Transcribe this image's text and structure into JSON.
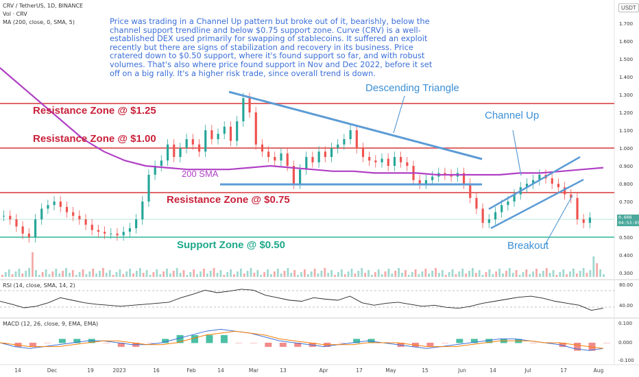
{
  "header": {
    "symbol_line": "CRV / TetherUS, 1D, BINANCE",
    "vol_line": "Vol · CRV",
    "ma_line": "MA (200, close, 0, SMA, 5)",
    "currency": "USDT"
  },
  "note": "Price was trading in a Channel Up pattern but broke out of it, bearishly, below the channel support trendline and below $0.75 support zone. Curve (CRV) is a well-established DEX used primarily for swapping of stablecoins. It suffered an exploit recently but there are signs of stabilization and recovery in its business. Price cratered down to $0.50 support, where it's found support so far, and with robust volumes. That's also where price found support in Nov and Dec 2022, before it set off on a big rally. It's a higher risk trade, since overall trend is down.",
  "annotations": {
    "res125": "Resistance Zone @ $1.25",
    "res100": "Resistance Zone @ $1.00",
    "res075": "Resistance Zone @ $0.75",
    "sup050": "Support Zone @ $0.50",
    "sma": "200 SMA",
    "desc_tri": "Descending Triangle",
    "channel_up": "Channel Up",
    "breakout": "Breakout"
  },
  "rsi_label": "RSI (14, close, SMA, 14, 2)",
  "macd_label": "MACD (12, 26, close, 9, EMA, EMA)",
  "price_tag": {
    "price": "0.608",
    "time": "04:53:05"
  },
  "colors": {
    "up": "#26a69a",
    "down": "#ef5350",
    "sma": "#b03fc4",
    "zone_red": "#e06666",
    "zone_green": "#5fc7b0",
    "blue": "#5b9bd5"
  },
  "chart_data": {
    "type": "candlestick",
    "price_axis": {
      "min": 0.3,
      "max": 1.7,
      "ticks": [
        "1.700",
        "1.600",
        "1.500",
        "1.400",
        "1.300",
        "1.200",
        "1.100",
        "1.000",
        "0.900",
        "0.800",
        "0.700",
        "0.600",
        "0.500",
        "0.400",
        "0.300"
      ]
    },
    "rsi_axis": {
      "ticks": [
        "80.00",
        "40.00"
      ],
      "bands": [
        70,
        30
      ]
    },
    "macd_axis": {
      "ticks": [
        "0.100",
        "0.000",
        "-0.100"
      ]
    },
    "x_ticks": [
      "14",
      "Dec",
      "19",
      "2023",
      "16",
      "Feb",
      "14",
      "Mar",
      "13",
      "Apr",
      "17",
      "May",
      "15",
      "Jun",
      "14",
      "Jul",
      "17",
      "Aug"
    ],
    "levels": [
      1.25,
      1.0,
      0.75,
      0.5
    ],
    "close_series": [
      0.62,
      0.6,
      0.56,
      0.52,
      0.5,
      0.6,
      0.66,
      0.68,
      0.7,
      0.67,
      0.64,
      0.62,
      0.6,
      0.57,
      0.54,
      0.53,
      0.52,
      0.52,
      0.51,
      0.53,
      0.55,
      0.6,
      0.7,
      0.85,
      0.9,
      0.93,
      1.02,
      0.95,
      1.0,
      1.05,
      1.02,
      0.98,
      1.1,
      1.05,
      1.08,
      1.12,
      1.04,
      1.15,
      1.28,
      1.2,
      1.02,
      0.98,
      0.95,
      0.93,
      0.97,
      0.9,
      0.8,
      0.88,
      0.95,
      0.92,
      0.98,
      0.95,
      1.0,
      1.02,
      1.05,
      1.1,
      1.0,
      0.95,
      0.93,
      0.92,
      0.94,
      0.9,
      0.95,
      0.92,
      0.9,
      0.82,
      0.8,
      0.82,
      0.84,
      0.86,
      0.85,
      0.84,
      0.86,
      0.8,
      0.72,
      0.66,
      0.58,
      0.6,
      0.64,
      0.68,
      0.7,
      0.74,
      0.78,
      0.8,
      0.82,
      0.85,
      0.83,
      0.8,
      0.78,
      0.74,
      0.72,
      0.6,
      0.58,
      0.61
    ],
    "sma200_series": [
      1.45,
      1.35,
      1.25,
      1.15,
      1.05,
      0.98,
      0.93,
      0.9,
      0.89,
      0.88,
      0.88,
      0.88,
      0.89,
      0.9,
      0.89,
      0.88,
      0.87,
      0.87,
      0.86,
      0.86,
      0.86,
      0.85,
      0.85,
      0.85,
      0.85,
      0.86,
      0.86,
      0.87,
      0.88,
      0.89
    ],
    "rsi_series": [
      48,
      42,
      35,
      38,
      45,
      55,
      50,
      45,
      42,
      40,
      38,
      40,
      42,
      44,
      46,
      55,
      62,
      70,
      65,
      68,
      72,
      70,
      60,
      55,
      50,
      48,
      55,
      52,
      50,
      58,
      45,
      40,
      44,
      46,
      42,
      38,
      40,
      36,
      34,
      38,
      44,
      48,
      52,
      56,
      58,
      54,
      48,
      44,
      40,
      30,
      34
    ],
    "macd_series": [
      0.0,
      -0.02,
      -0.03,
      -0.02,
      -0.01,
      0.0,
      0.01,
      0.01,
      0.0,
      -0.01,
      -0.01,
      0.0,
      0.02,
      0.04,
      0.06,
      0.07,
      0.06,
      0.05,
      0.03,
      0.01,
      0.0,
      -0.01,
      -0.02,
      -0.01,
      0.0,
      0.01,
      0.0,
      -0.01,
      -0.02,
      -0.03,
      -0.02,
      -0.01,
      0.0,
      0.01,
      0.02,
      0.02,
      0.01,
      0.0,
      -0.01,
      -0.03,
      -0.04,
      -0.03
    ],
    "signal_series": [
      0.0,
      -0.01,
      -0.02,
      -0.02,
      -0.02,
      -0.01,
      0.0,
      0.01,
      0.01,
      0.0,
      -0.01,
      -0.01,
      0.0,
      0.02,
      0.04,
      0.05,
      0.06,
      0.05,
      0.04,
      0.02,
      0.01,
      0.0,
      -0.01,
      -0.01,
      -0.01,
      0.0,
      0.0,
      0.0,
      -0.01,
      -0.02,
      -0.02,
      -0.02,
      -0.01,
      0.0,
      0.01,
      0.01,
      0.01,
      0.0,
      0.0,
      -0.01,
      -0.02,
      -0.03
    ]
  }
}
